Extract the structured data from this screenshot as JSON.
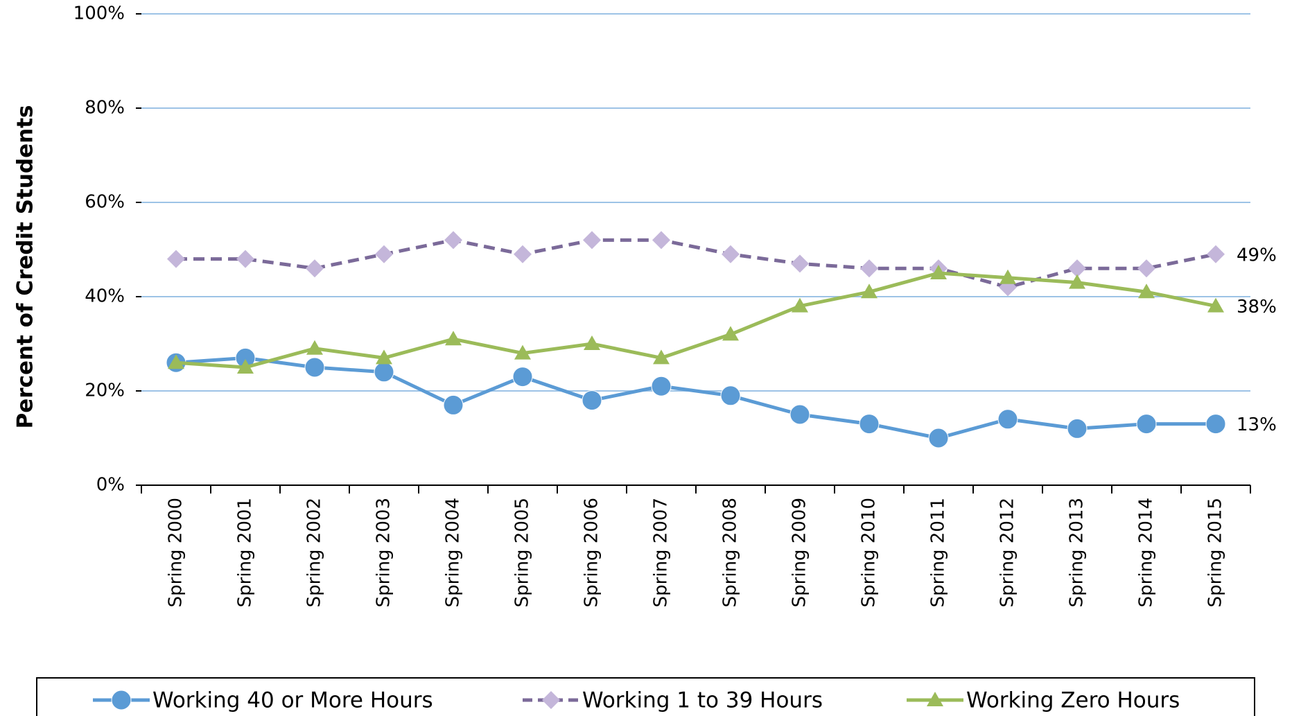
{
  "chart_data": {
    "type": "line",
    "y_label": "Percent of Credit Students",
    "categories": [
      "Spring 2000",
      "Spring 2001",
      "Spring 2002",
      "Spring 2003",
      "Spring 2004",
      "Spring 2005",
      "Spring 2006",
      "Spring 2007",
      "Spring 2008",
      "Spring 2009",
      "Spring 2010",
      "Spring 2011",
      "Spring 2012",
      "Spring 2013",
      "Spring 2014",
      "Spring 2015"
    ],
    "series": [
      {
        "name": "Working 40 or More Hours",
        "color": "#5b9bd5",
        "marker": "circle",
        "dash": false,
        "values": [
          26,
          27,
          25,
          24,
          17,
          23,
          18,
          21,
          19,
          15,
          13,
          10,
          14,
          12,
          13,
          13
        ],
        "value_labels": [
          null,
          null,
          null,
          null,
          null,
          null,
          null,
          null,
          null,
          null,
          null,
          null,
          null,
          null,
          null,
          "13%"
        ]
      },
      {
        "name": "Working 1 to 39 Hours",
        "color": "#7b6a99",
        "marker_color": "#c4b6da",
        "marker": "diamond",
        "dash": true,
        "values": [
          48,
          48,
          46,
          49,
          52,
          49,
          52,
          52,
          49,
          47,
          46,
          46,
          42,
          46,
          46,
          49
        ],
        "value_labels": [
          null,
          null,
          null,
          null,
          null,
          null,
          null,
          null,
          null,
          null,
          null,
          null,
          null,
          null,
          null,
          "49%"
        ]
      },
      {
        "name": "Working Zero Hours",
        "color": "#9bbb59",
        "marker": "triangle",
        "dash": false,
        "values": [
          26,
          25,
          29,
          27,
          31,
          28,
          30,
          27,
          32,
          38,
          41,
          45,
          44,
          43,
          41,
          38
        ],
        "value_labels": [
          null,
          null,
          null,
          null,
          null,
          null,
          null,
          null,
          null,
          null,
          null,
          null,
          null,
          null,
          null,
          "38%"
        ]
      }
    ],
    "ylim": [
      0,
      100
    ],
    "yticks": [
      {
        "value": 0,
        "label": "0%"
      },
      {
        "value": 20,
        "label": "20%"
      },
      {
        "value": 40,
        "label": "40%"
      },
      {
        "value": 60,
        "label": "60%"
      },
      {
        "value": 80,
        "label": "80%"
      },
      {
        "value": 100,
        "label": "100%"
      }
    ],
    "grid": true,
    "legend": "bottom"
  }
}
